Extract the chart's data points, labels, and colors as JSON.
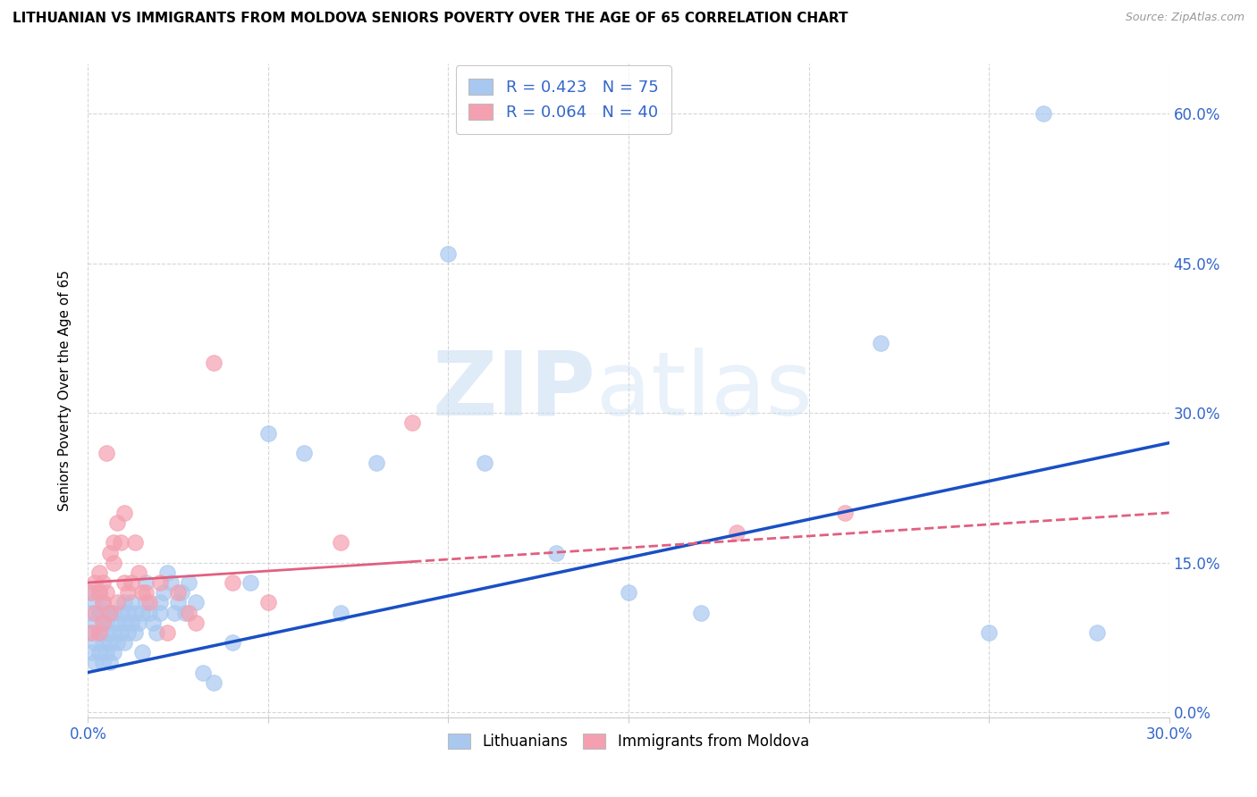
{
  "title": "LITHUANIAN VS IMMIGRANTS FROM MOLDOVA SENIORS POVERTY OVER THE AGE OF 65 CORRELATION CHART",
  "source": "Source: ZipAtlas.com",
  "ylabel": "Seniors Poverty Over the Age of 65",
  "xlim": [
    0.0,
    0.3
  ],
  "ylim": [
    -0.005,
    0.65
  ],
  "xticks": [
    0.0,
    0.05,
    0.1,
    0.15,
    0.2,
    0.25,
    0.3
  ],
  "xtick_labels": [
    "0.0%",
    "",
    "",
    "",
    "",
    "",
    "30.0%"
  ],
  "yticks": [
    0.0,
    0.15,
    0.3,
    0.45,
    0.6
  ],
  "ytick_labels_right": [
    "0.0%",
    "15.0%",
    "30.0%",
    "45.0%",
    "60.0%"
  ],
  "R_blue": 0.423,
  "N_blue": 75,
  "R_pink": 0.064,
  "N_pink": 40,
  "blue_color": "#A8C8F0",
  "pink_color": "#F4A0B0",
  "trendline_blue": "#1A4FC4",
  "trendline_pink": "#E06080",
  "watermark_zip": "ZIP",
  "watermark_atlas": "atlas",
  "legend_label_blue": "Lithuanians",
  "legend_label_pink": "Immigrants from Moldova",
  "blue_x": [
    0.001,
    0.001,
    0.001,
    0.001,
    0.002,
    0.002,
    0.002,
    0.002,
    0.003,
    0.003,
    0.003,
    0.003,
    0.004,
    0.004,
    0.004,
    0.004,
    0.005,
    0.005,
    0.005,
    0.005,
    0.006,
    0.006,
    0.006,
    0.007,
    0.007,
    0.007,
    0.008,
    0.008,
    0.009,
    0.009,
    0.01,
    0.01,
    0.01,
    0.011,
    0.011,
    0.012,
    0.012,
    0.013,
    0.013,
    0.014,
    0.015,
    0.015,
    0.016,
    0.016,
    0.017,
    0.018,
    0.019,
    0.02,
    0.02,
    0.021,
    0.022,
    0.023,
    0.024,
    0.025,
    0.026,
    0.027,
    0.028,
    0.03,
    0.032,
    0.035,
    0.04,
    0.045,
    0.05,
    0.06,
    0.07,
    0.08,
    0.1,
    0.11,
    0.13,
    0.15,
    0.17,
    0.22,
    0.25,
    0.265,
    0.28
  ],
  "blue_y": [
    0.08,
    0.1,
    0.06,
    0.12,
    0.07,
    0.09,
    0.05,
    0.11,
    0.08,
    0.1,
    0.06,
    0.12,
    0.07,
    0.09,
    0.05,
    0.11,
    0.08,
    0.1,
    0.06,
    0.09,
    0.07,
    0.1,
    0.05,
    0.08,
    0.1,
    0.06,
    0.09,
    0.07,
    0.1,
    0.08,
    0.09,
    0.11,
    0.07,
    0.1,
    0.08,
    0.09,
    0.11,
    0.1,
    0.08,
    0.09,
    0.06,
    0.1,
    0.11,
    0.13,
    0.1,
    0.09,
    0.08,
    0.11,
    0.1,
    0.12,
    0.14,
    0.13,
    0.1,
    0.11,
    0.12,
    0.1,
    0.13,
    0.11,
    0.04,
    0.03,
    0.07,
    0.13,
    0.28,
    0.26,
    0.1,
    0.25,
    0.46,
    0.25,
    0.16,
    0.12,
    0.1,
    0.37,
    0.08,
    0.6,
    0.08
  ],
  "pink_x": [
    0.001,
    0.001,
    0.002,
    0.002,
    0.003,
    0.003,
    0.003,
    0.004,
    0.004,
    0.004,
    0.005,
    0.005,
    0.006,
    0.006,
    0.007,
    0.007,
    0.008,
    0.008,
    0.009,
    0.01,
    0.01,
    0.011,
    0.012,
    0.013,
    0.014,
    0.015,
    0.016,
    0.017,
    0.02,
    0.022,
    0.025,
    0.028,
    0.03,
    0.035,
    0.04,
    0.05,
    0.07,
    0.09,
    0.18,
    0.21
  ],
  "pink_y": [
    0.12,
    0.08,
    0.13,
    0.1,
    0.14,
    0.12,
    0.08,
    0.11,
    0.09,
    0.13,
    0.26,
    0.12,
    0.1,
    0.16,
    0.17,
    0.15,
    0.19,
    0.11,
    0.17,
    0.13,
    0.2,
    0.12,
    0.13,
    0.17,
    0.14,
    0.12,
    0.12,
    0.11,
    0.13,
    0.08,
    0.12,
    0.1,
    0.09,
    0.35,
    0.13,
    0.11,
    0.17,
    0.29,
    0.18,
    0.2
  ],
  "blue_trend_x0": 0.0,
  "blue_trend_x1": 0.3,
  "blue_trend_y0": 0.04,
  "blue_trend_y1": 0.27,
  "pink_trend_solid_x0": 0.0,
  "pink_trend_solid_x1": 0.09,
  "pink_trend_dashed_x0": 0.09,
  "pink_trend_dashed_x1": 0.3,
  "pink_trend_y0": 0.13,
  "pink_trend_y1": 0.2
}
